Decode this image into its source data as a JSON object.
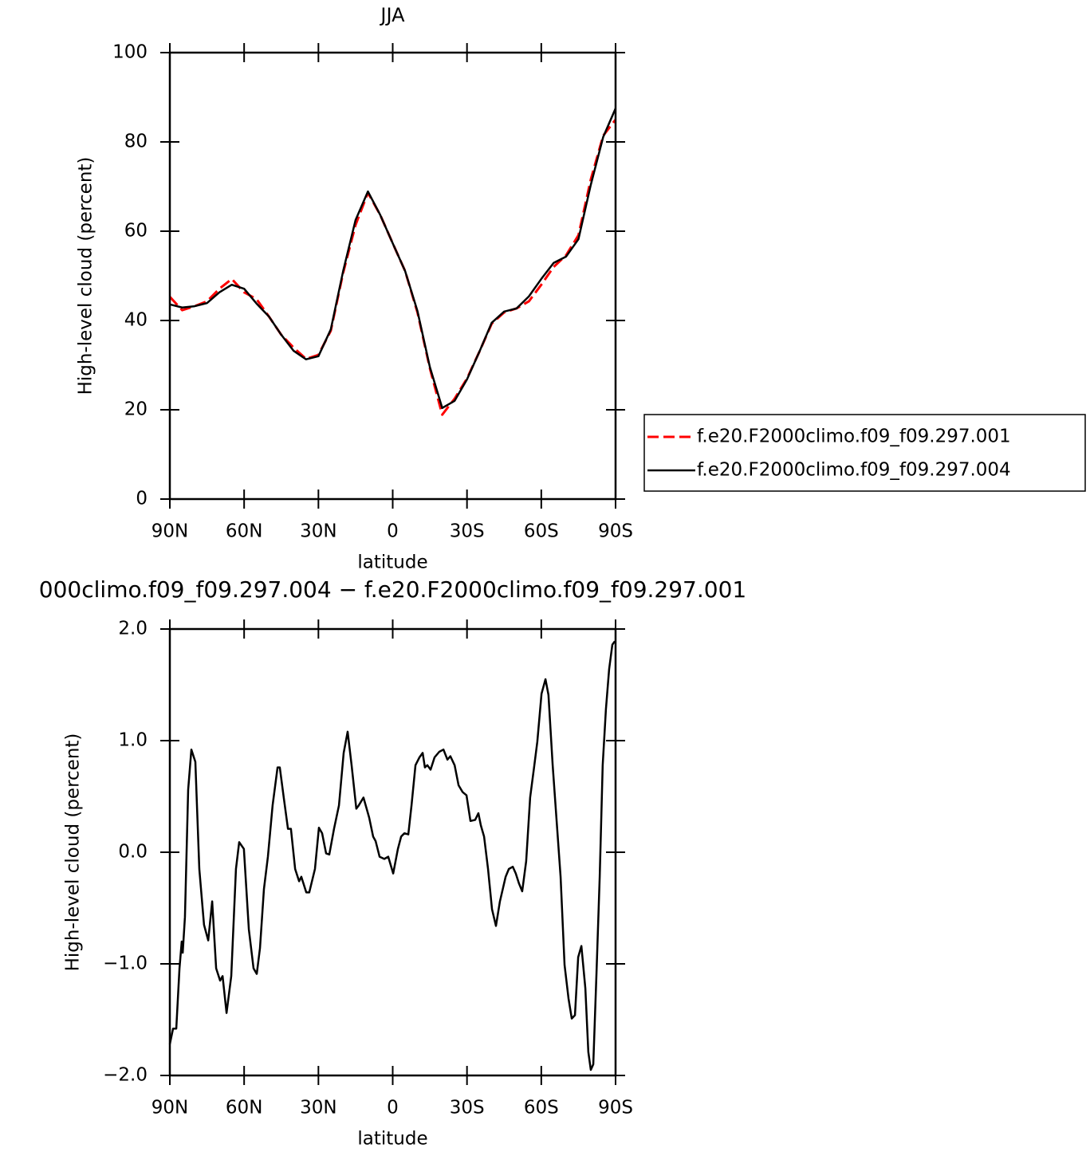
{
  "chart_data": [
    {
      "type": "line",
      "title": "JJA",
      "x_label": "latitude",
      "y_label": "High-level cloud (percent)",
      "x": [
        90,
        85,
        80,
        75,
        70,
        65,
        60,
        55,
        50,
        45,
        40,
        35,
        30,
        25,
        20,
        15,
        10,
        5,
        0,
        -5,
        -10,
        -15,
        -20,
        -25,
        -30,
        -35,
        -40,
        -45,
        -50,
        -55,
        -60,
        -65,
        -70,
        -75,
        -80,
        -85,
        -90
      ],
      "series": [
        {
          "name": "f.e20.F2000climo.f09_f09.297.001",
          "color": "#ff0000",
          "dashed": true,
          "values": [
            45.3,
            42.3,
            43.2,
            44.3,
            47.1,
            49.3,
            46.3,
            44.8,
            40.9,
            36.8,
            33.9,
            31.4,
            32.3,
            37.7,
            50.7,
            61.4,
            68.6,
            63.6,
            57.3,
            51.1,
            41.8,
            29.3,
            18.9,
            22.5,
            27.0,
            33.0,
            39.3,
            41.8,
            42.7,
            44.3,
            48.0,
            52.0,
            54.6,
            59.1,
            71.6,
            81.4,
            85.0
          ]
        },
        {
          "name": "f.e20.F2000climo.f09_f09.297.004",
          "color": "#000000",
          "dashed": false,
          "values": [
            43.6,
            42.9,
            43.2,
            43.9,
            46.3,
            48.0,
            47.1,
            43.8,
            40.9,
            36.8,
            33.2,
            31.3,
            32.0,
            38.0,
            51.1,
            62.5,
            68.9,
            63.6,
            57.3,
            51.1,
            42.1,
            29.6,
            20.4,
            22.0,
            26.8,
            33.0,
            39.5,
            42.0,
            42.7,
            45.4,
            49.3,
            52.9,
            54.3,
            58.2,
            70.4,
            81.1,
            87.5
          ]
        }
      ],
      "xlim": [
        90,
        -90
      ],
      "xticks": [
        {
          "value": 90,
          "label": "90N"
        },
        {
          "value": 60,
          "label": "60N"
        },
        {
          "value": 30,
          "label": "30N"
        },
        0,
        {
          "value": -30,
          "label": "30S"
        },
        {
          "value": -60,
          "label": "60S"
        },
        {
          "value": -90,
          "label": "90S"
        }
      ],
      "ylim": [
        0,
        100
      ],
      "yticks": [
        0,
        20,
        40,
        60,
        80,
        100
      ],
      "legend": "right"
    },
    {
      "type": "line",
      "title": "000climo.f09_f09.297.004 − f.e20.F2000climo.f09_f09.297.001",
      "x_label": "latitude",
      "y_label": "High-level cloud (percent)",
      "x": [
        90,
        88.7,
        87.4,
        86.1,
        85.2,
        84.8,
        83.9,
        82.6,
        81.3,
        79.7,
        78.1,
        76.2,
        74.5,
        72.9,
        71.3,
        69.7,
        68.7,
        67.1,
        65.2,
        63.3,
        62.0,
        60.1,
        58.1,
        56.2,
        54.9,
        53.6,
        52.0,
        50.4,
        48.5,
        46.5,
        45.6,
        44.0,
        42.3,
        41.1,
        39.4,
        37.8,
        36.9,
        34.9,
        33.7,
        31.4,
        29.8,
        28.5,
        26.9,
        25.6,
        23.7,
        21.7,
        19.8,
        18.2,
        16.6,
        14.7,
        13.7,
        11.8,
        9.5,
        7.9,
        6.9,
        5.3,
        3.4,
        1.8,
        -0.2,
        -2.1,
        -3.4,
        -4.7,
        -6.3,
        -7.6,
        -9.2,
        -10.8,
        -12.1,
        -13.0,
        -14.0,
        -15.3,
        -16.9,
        -18.8,
        -20.5,
        -22.1,
        -23.3,
        -25.0,
        -26.6,
        -28.2,
        -29.8,
        -31.4,
        -33.3,
        -34.6,
        -35.6,
        -36.9,
        -38.5,
        -40.1,
        -41.7,
        -43.3,
        -45.6,
        -46.9,
        -48.5,
        -49.7,
        -51.0,
        -52.3,
        -53.9,
        -55.5,
        -57.2,
        -58.4,
        -60.1,
        -61.7,
        -62.9,
        -64.6,
        -66.2,
        -67.8,
        -69.4,
        -71.0,
        -72.3,
        -73.6,
        -74.9,
        -76.2,
        -77.8,
        -79.0,
        -80.0,
        -81.0,
        -82.3,
        -83.6,
        -84.8,
        -86.1,
        -87.4,
        -88.7,
        -89.7
      ],
      "values": [
        -1.72,
        -1.58,
        -1.58,
        -1.04,
        -0.8,
        -0.9,
        -0.58,
        0.56,
        0.92,
        0.81,
        -0.15,
        -0.65,
        -0.79,
        -0.44,
        -1.04,
        -1.15,
        -1.11,
        -1.44,
        -1.11,
        -0.15,
        0.09,
        0.03,
        -0.69,
        -1.04,
        -1.09,
        -0.86,
        -0.33,
        -0.04,
        0.42,
        0.76,
        0.76,
        0.49,
        0.21,
        0.21,
        -0.15,
        -0.26,
        -0.22,
        -0.36,
        -0.36,
        -0.15,
        0.22,
        0.17,
        -0.01,
        -0.02,
        0.21,
        0.42,
        0.89,
        1.08,
        0.78,
        0.39,
        0.42,
        0.49,
        0.31,
        0.14,
        0.1,
        -0.04,
        -0.06,
        -0.04,
        -0.19,
        0.03,
        0.14,
        0.17,
        0.16,
        0.42,
        0.78,
        0.85,
        0.89,
        0.76,
        0.78,
        0.74,
        0.85,
        0.9,
        0.92,
        0.83,
        0.86,
        0.78,
        0.6,
        0.54,
        0.51,
        0.28,
        0.29,
        0.35,
        0.24,
        0.14,
        -0.15,
        -0.51,
        -0.66,
        -0.44,
        -0.22,
        -0.15,
        -0.13,
        -0.19,
        -0.28,
        -0.35,
        -0.08,
        0.49,
        0.78,
        0.99,
        1.42,
        1.55,
        1.41,
        0.78,
        0.28,
        -0.22,
        -1.01,
        -1.31,
        -1.49,
        -1.46,
        -0.94,
        -0.84,
        -1.22,
        -1.79,
        -1.95,
        -1.9,
        -1.08,
        -0.22,
        0.78,
        1.28,
        1.64,
        1.86,
        1.89
      ],
      "color": "#000000",
      "xlim": [
        90,
        -90
      ],
      "xticks": [
        {
          "value": 90,
          "label": "90N"
        },
        {
          "value": 60,
          "label": "60N"
        },
        {
          "value": 30,
          "label": "30N"
        },
        0,
        {
          "value": -30,
          "label": "30S"
        },
        {
          "value": -60,
          "label": "60S"
        },
        {
          "value": -90,
          "label": "90S"
        }
      ],
      "ylim": [
        -2,
        2
      ],
      "yticks": [
        {
          "value": -2,
          "label": "−2.0"
        },
        {
          "value": -1,
          "label": "−1.0"
        },
        {
          "value": 0,
          "label": "0.0"
        },
        {
          "value": 1,
          "label": "1.0"
        },
        {
          "value": 2,
          "label": "2.0"
        }
      ]
    }
  ]
}
